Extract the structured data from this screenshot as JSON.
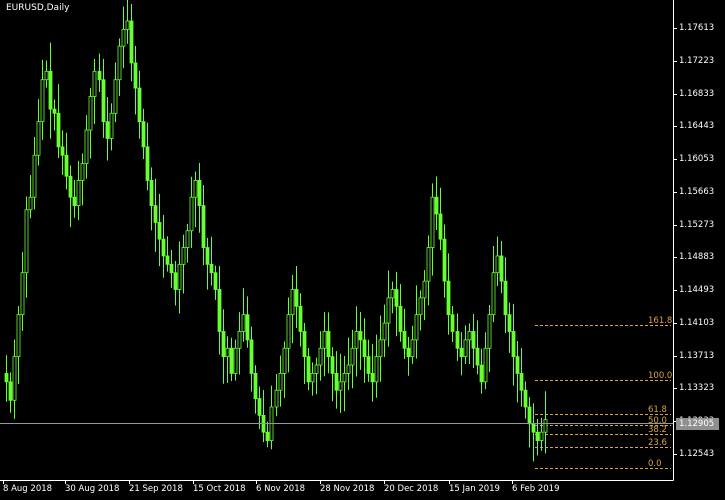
{
  "window": {
    "title": "EURUSD,Daily"
  },
  "colors": {
    "background": "#000000",
    "candle": "#66ff33",
    "axis": "#ffffff",
    "fib": "#d9a441",
    "price_line": "#8f9aa0",
    "price_box": "#8f8f8f"
  },
  "price_axis": {
    "ticks": [
      "1.17613",
      "1.17223",
      "1.16833",
      "1.16443",
      "1.16053",
      "1.15663",
      "1.15273",
      "1.14883",
      "1.14493",
      "1.14103",
      "1.13713",
      "1.13323",
      "1.12933",
      "1.12543"
    ],
    "current_price": "1.12905"
  },
  "time_axis": {
    "labels": [
      "8 Aug 2018",
      "30 Aug 2018",
      "21 Sep 2018",
      "15 Oct 2018",
      "6 Nov 2018",
      "28 Nov 2018",
      "20 Dec 2018",
      "15 Jan 2019",
      "6 Feb 2019"
    ]
  },
  "fibonacci": {
    "levels": [
      {
        "label": "161.8",
        "price": 1.1408
      },
      {
        "label": "100.0",
        "price": 1.1342
      },
      {
        "label": "61.8",
        "price": 1.1302
      },
      {
        "label": "50.0",
        "price": 1.1289
      },
      {
        "label": "38.2",
        "price": 1.1278
      },
      {
        "label": "23.6",
        "price": 1.1262
      },
      {
        "label": "0.0",
        "price": 1.1237
      }
    ]
  },
  "chart_data": {
    "type": "candlestick",
    "symbol": "EURUSD",
    "timeframe": "Daily",
    "ylim": [
      1.1223,
      1.1795
    ],
    "closes": [
      1.134,
      1.1318,
      1.137,
      1.142,
      1.147,
      1.1545,
      1.156,
      1.161,
      1.165,
      1.17,
      1.171,
      1.1665,
      1.166,
      1.162,
      1.161,
      1.1585,
      1.156,
      1.155,
      1.158,
      1.16,
      1.164,
      1.168,
      1.171,
      1.17,
      1.165,
      1.163,
      1.166,
      1.17,
      1.174,
      1.176,
      1.177,
      1.172,
      1.169,
      1.165,
      1.162,
      1.158,
      1.155,
      1.153,
      1.151,
      1.149,
      1.148,
      1.147,
      1.145,
      1.148,
      1.15,
      1.152,
      1.156,
      1.158,
      1.155,
      1.15,
      1.148,
      1.147,
      1.145,
      1.14,
      1.137,
      1.138,
      1.135,
      1.138,
      1.14,
      1.142,
      1.139,
      1.135,
      1.132,
      1.13,
      1.128,
      1.127,
      1.131,
      1.133,
      1.135,
      1.138,
      1.142,
      1.145,
      1.143,
      1.14,
      1.137,
      1.134,
      1.135,
      1.136,
      1.138,
      1.14,
      1.137,
      1.135,
      1.133,
      1.134,
      1.135,
      1.136,
      1.138,
      1.14,
      1.139,
      1.137,
      1.135,
      1.134,
      1.137,
      1.139,
      1.141,
      1.144,
      1.145,
      1.143,
      1.14,
      1.138,
      1.137,
      1.139,
      1.142,
      1.144,
      1.146,
      1.15,
      1.156,
      1.154,
      1.151,
      1.146,
      1.142,
      1.14,
      1.138,
      1.137,
      1.139,
      1.14,
      1.138,
      1.136,
      1.134,
      1.138,
      1.142,
      1.147,
      1.149,
      1.146,
      1.142,
      1.14,
      1.137,
      1.135,
      1.133,
      1.131,
      1.129,
      1.128,
      1.127,
      1.128,
      1.1295
    ]
  }
}
